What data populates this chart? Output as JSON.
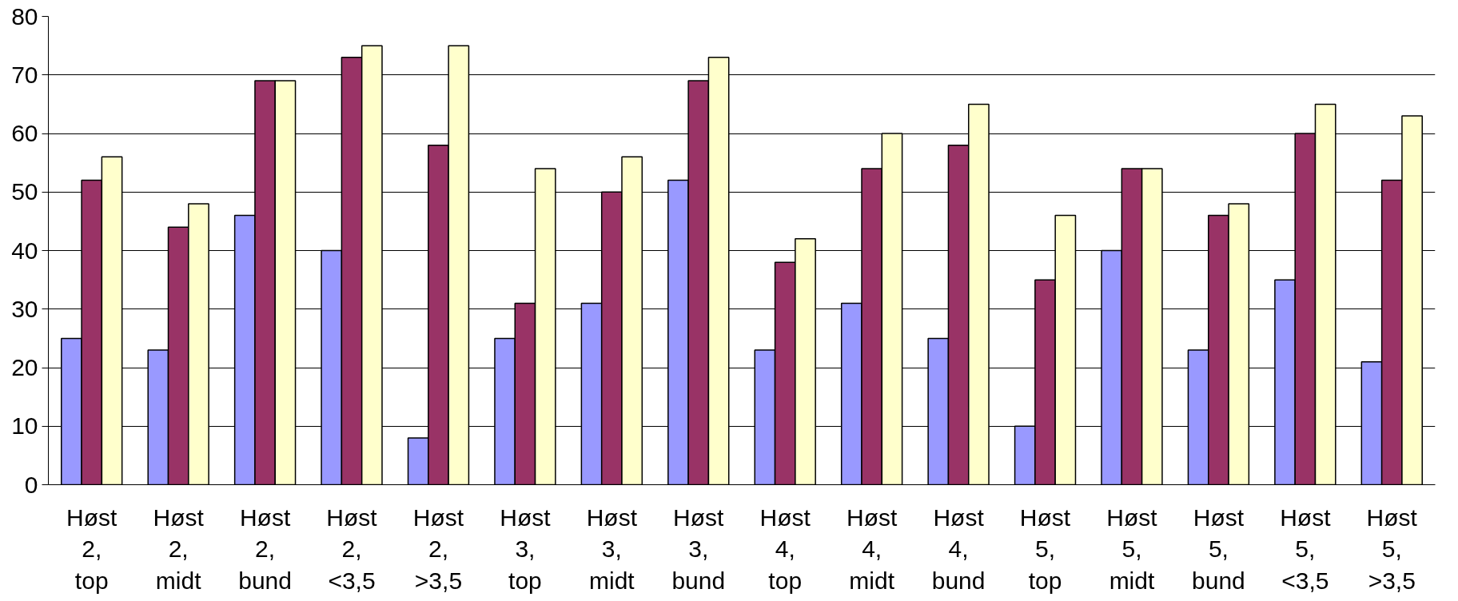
{
  "chart_data": {
    "type": "bar",
    "categories": [
      "Høst\n2,\ntop",
      "Høst\n2,\nmidt",
      "Høst\n2,\nbund",
      "Høst\n2,\n<3,5",
      "Høst\n2,\n>3,5",
      "Høst\n3,\ntop",
      "Høst\n3,\nmidt",
      "Høst\n3,\nbund",
      "Høst\n4,\ntop",
      "Høst\n4,\nmidt",
      "Høst\n4,\nbund",
      "Høst\n5,\ntop",
      "Høst\n5,\nmidt",
      "Høst\n5,\nbund",
      "Høst\n5,\n<3,5",
      "Høst\n5,\n>3,5"
    ],
    "series": [
      {
        "color": "#9999ff",
        "values": [
          25,
          23,
          46,
          40,
          8,
          25,
          31,
          52,
          23,
          31,
          25,
          10,
          40,
          23,
          35,
          21
        ]
      },
      {
        "color": "#993366",
        "values": [
          52,
          44,
          69,
          73,
          58,
          31,
          50,
          69,
          38,
          54,
          58,
          35,
          54,
          46,
          60,
          52
        ]
      },
      {
        "color": "#ffffcc",
        "values": [
          56,
          48,
          69,
          75,
          75,
          54,
          56,
          73,
          42,
          60,
          65,
          46,
          54,
          48,
          65,
          63
        ]
      }
    ],
    "ylim": [
      0,
      80
    ],
    "yticks": [
      0,
      10,
      20,
      30,
      40,
      50,
      60,
      70,
      80
    ],
    "grid": "y"
  }
}
